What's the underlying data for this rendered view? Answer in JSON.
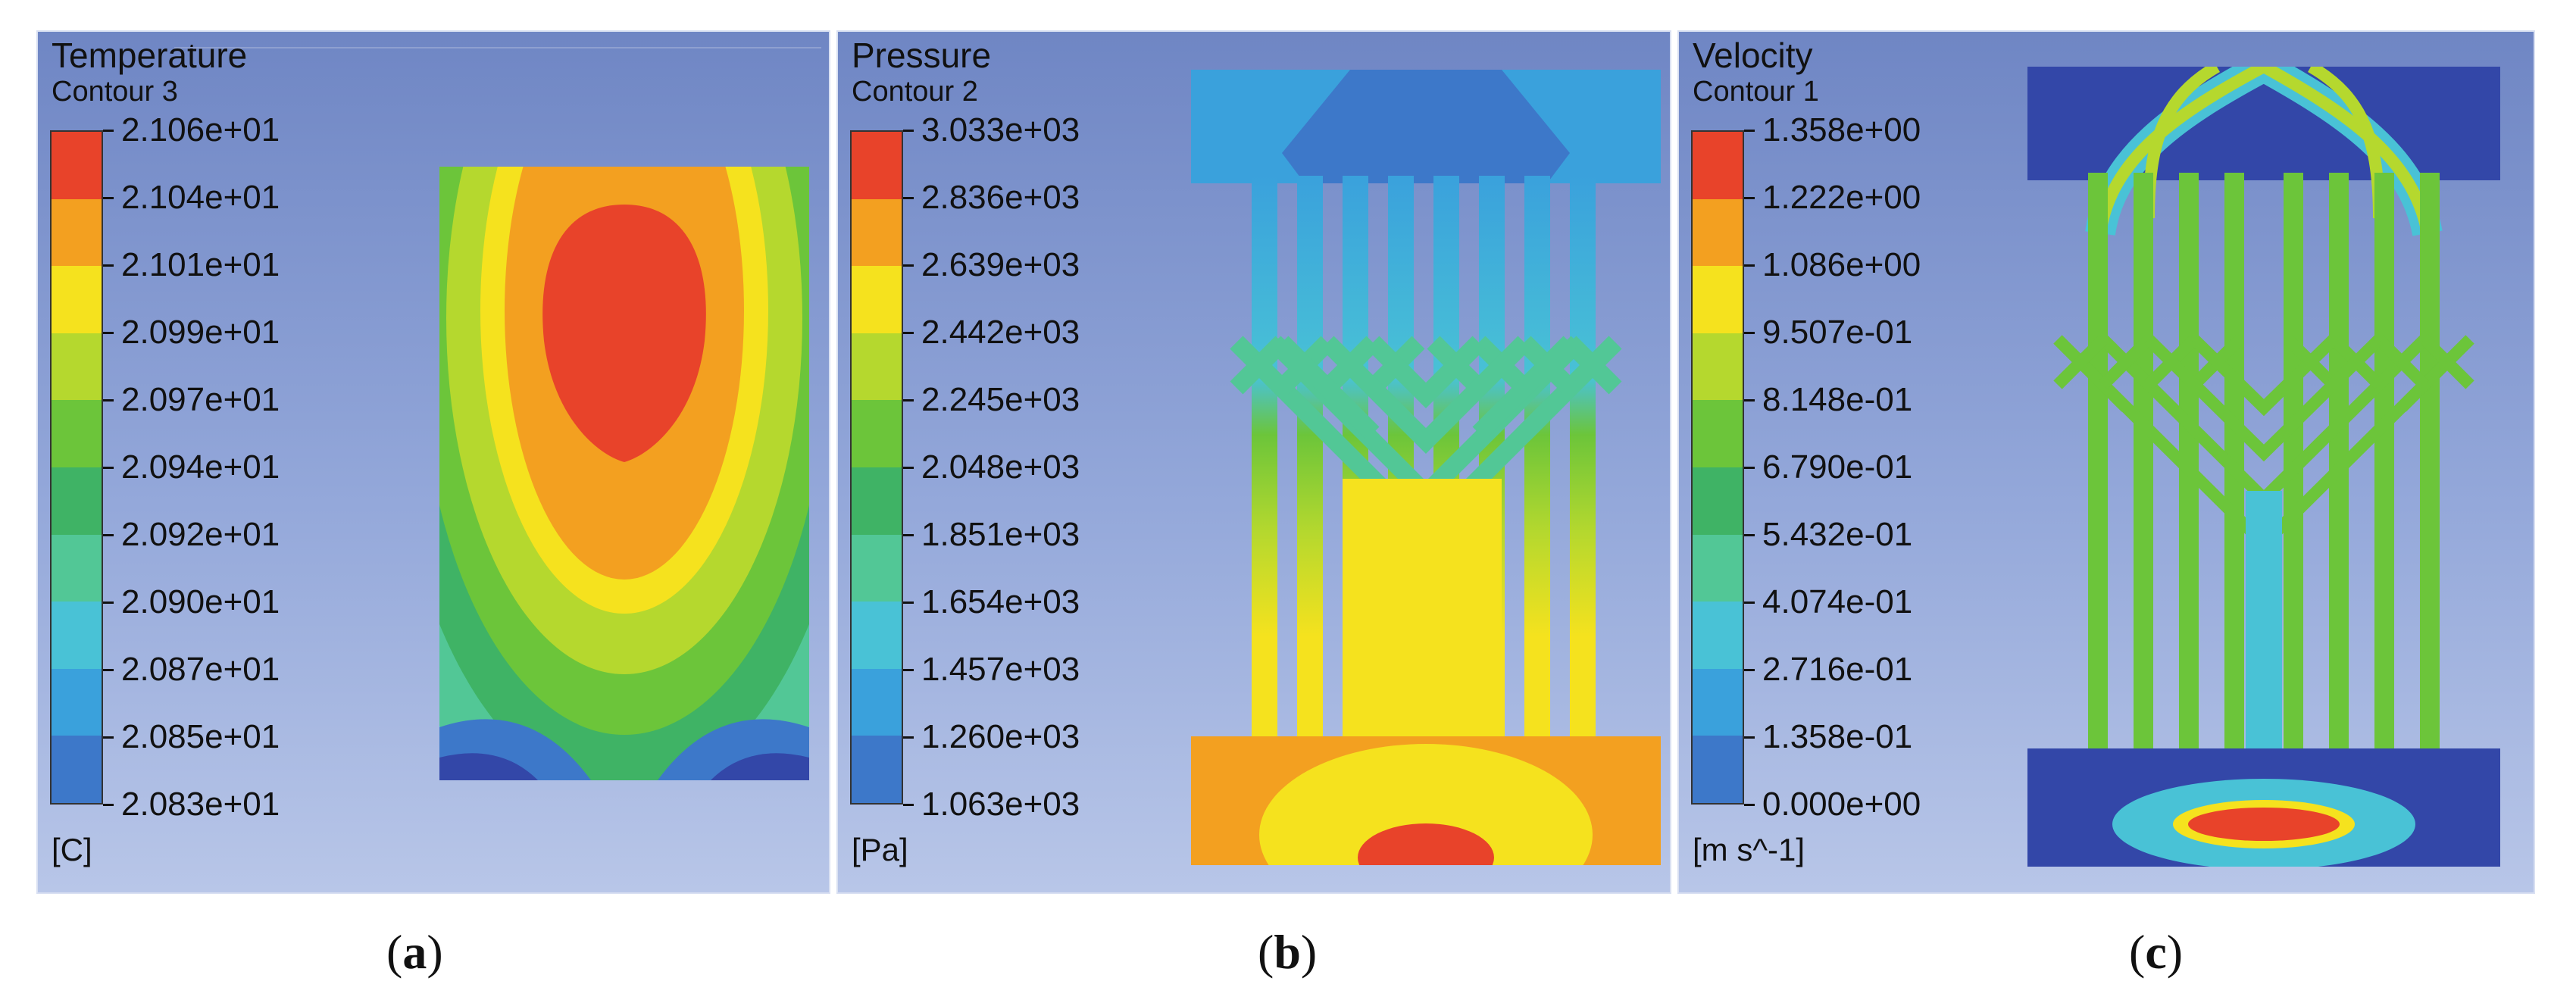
{
  "panels": [
    {
      "title": "Temperature",
      "subtitle": "Contour 3",
      "ticks": [
        "2.106e+01",
        "2.104e+01",
        "2.101e+01",
        "2.099e+01",
        "2.097e+01",
        "2.094e+01",
        "2.092e+01",
        "2.090e+01",
        "2.087e+01",
        "2.085e+01",
        "2.083e+01"
      ],
      "unit": "[C]",
      "caption": "a"
    },
    {
      "title": "Pressure",
      "subtitle": "Contour 2",
      "ticks": [
        "3.033e+03",
        "2.836e+03",
        "2.639e+03",
        "2.442e+03",
        "2.245e+03",
        "2.048e+03",
        "1.851e+03",
        "1.654e+03",
        "1.457e+03",
        "1.260e+03",
        "1.063e+03"
      ],
      "unit": "[Pa]",
      "caption": "b"
    },
    {
      "title": "Velocity",
      "subtitle": "Contour 1",
      "ticks": [
        "1.358e+00",
        "1.222e+00",
        "1.086e+00",
        "9.507e-01",
        "8.148e-01",
        "6.790e-01",
        "5.432e-01",
        "4.074e-01",
        "2.716e-01",
        "1.358e-01",
        "0.000e+00"
      ],
      "unit": "[m s^-1]",
      "caption": "c"
    }
  ],
  "colormap": [
    "#e8432a",
    "#f3a020",
    "#f5e21e",
    "#b5d82e",
    "#6cc53a",
    "#3fb365",
    "#52c796",
    "#49c2d6",
    "#3aa1dc",
    "#3d78c9",
    "#3347a8"
  ]
}
